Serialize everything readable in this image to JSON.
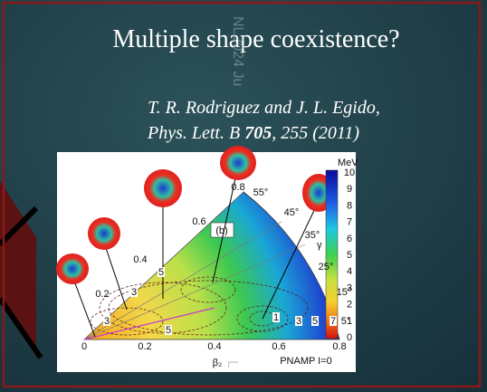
{
  "slide": {
    "title": "Multiple shape coexistence?",
    "reference": {
      "authors": "T. R. Rodriguez and J. L. Egido,",
      "journal": "Phys. Lett. B ",
      "volume": "705",
      "pages": ", 255 (2011)"
    },
    "watermark": [
      "NL2024 Ju",
      "L"
    ]
  },
  "figure": {
    "panel_label": "(b)",
    "colorbar_unit": "MeV",
    "colorbar_ticks": [
      "10",
      "9",
      "8",
      "7",
      "6",
      "5",
      "4",
      "3",
      "2",
      "1",
      "0"
    ],
    "beta_ticks": [
      "0",
      "0.2",
      "0.4",
      "0.6",
      "0.8"
    ],
    "x_label": "β₂",
    "note": "PNAMP I=0",
    "gamma_label": "γ",
    "gamma_ticks": [
      "55°",
      "45°",
      "35°",
      "25°",
      "15°",
      "5°"
    ],
    "radial_labels": [
      "0.8",
      "0.6",
      "0.4",
      "0.2"
    ],
    "contour_labels": [
      "5",
      "3",
      "3",
      "5",
      "1",
      "3",
      "5",
      "7"
    ]
  }
}
